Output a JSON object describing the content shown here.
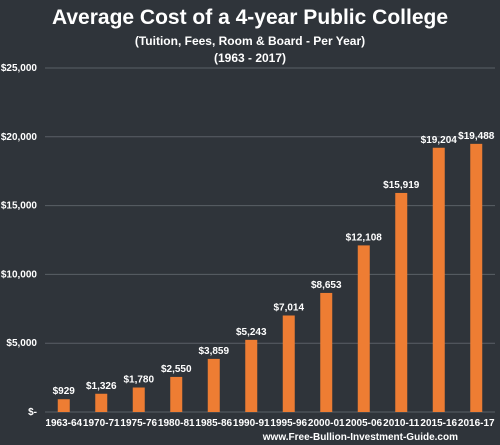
{
  "chart_data": {
    "type": "bar",
    "title": "Average Cost of a 4-year Public College",
    "subtitle": "(Tuition, Fees, Room & Board - Per Year)",
    "period": "(1963 - 2017)",
    "categories": [
      "1963-64",
      "1970-71",
      "1975-76",
      "1980-81",
      "1985-86",
      "1990-91",
      "1995-96",
      "2000-01",
      "2005-06",
      "2010-11",
      "2015-16",
      "2016-17"
    ],
    "values": [
      929,
      1326,
      1780,
      2550,
      3859,
      5243,
      7014,
      8653,
      12108,
      15919,
      19204,
      19488
    ],
    "data_labels": [
      "$929",
      "$1,326",
      "$1,780",
      "$2,550",
      "$3,859",
      "$5,243",
      "$7,014",
      "$8,653",
      "$12,108",
      "$15,919",
      "$19,204",
      "$19,488"
    ],
    "y_ticks": [
      0,
      5000,
      10000,
      15000,
      20000,
      25000
    ],
    "y_tick_labels": [
      "$-",
      "$5,000",
      "$10,000",
      "$15,000",
      "$20,000",
      "$25,000"
    ],
    "ylim": [
      0,
      25000
    ],
    "grid": true,
    "legend": "none",
    "colors": {
      "bar": "#ee7d33",
      "grid": "#5a5f66",
      "background": "#2f343a"
    }
  },
  "source": "www.Free-Bullion-Investment-Guide.com"
}
